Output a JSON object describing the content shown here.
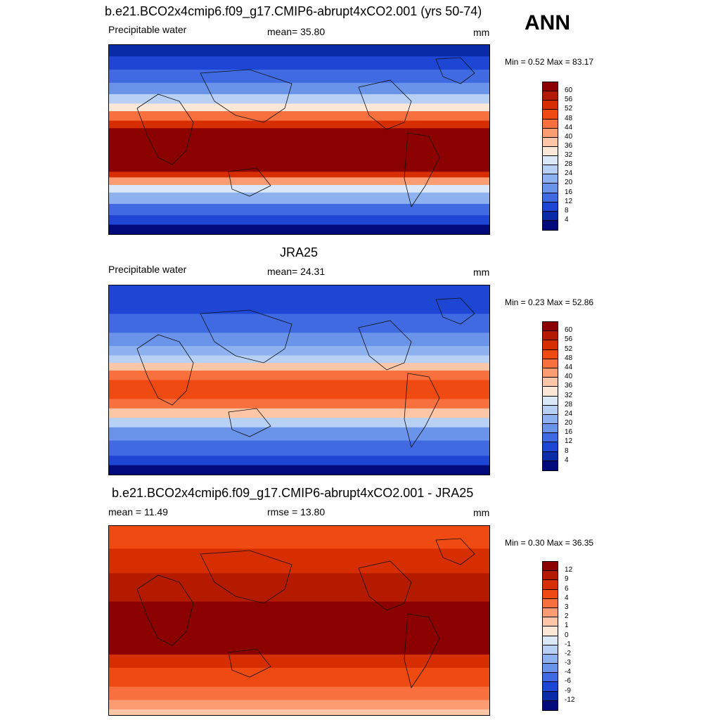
{
  "annotation": "ANN",
  "panels": [
    {
      "title": "b.e21.BCO2x4cmip6.f09_g17.CMIP6-abrupt4xCO2.001 (yrs 50-74)",
      "left_label": "Precipitable water",
      "center_label": "mean=  35.80",
      "right_label": "mm",
      "minmax": "Min =   0.52 Max =  83.17",
      "colorbar_labels": [
        "60",
        "56",
        "52",
        "48",
        "44",
        "40",
        "36",
        "32",
        "28",
        "24",
        "20",
        "16",
        "12",
        "8",
        "4"
      ],
      "colorbar_colors": [
        "#8b0000",
        "#b41a00",
        "#d62e00",
        "#ef4a12",
        "#f8703e",
        "#fb9c73",
        "#fdc6a6",
        "#fde8d8",
        "#dbe8f8",
        "#b8d0f4",
        "#8eb2ef",
        "#6a93ea",
        "#3f6ae2",
        "#1d46d5",
        "#0a2ba8",
        "#000a7a"
      ],
      "map_type": "model"
    },
    {
      "title": "JRA25",
      "left_label": "Precipitable water",
      "center_label": "mean=  24.31",
      "right_label": "mm",
      "minmax": "Min =   0.23 Max =  52.86",
      "colorbar_labels": [
        "60",
        "56",
        "52",
        "48",
        "44",
        "40",
        "36",
        "32",
        "28",
        "24",
        "20",
        "16",
        "12",
        "8",
        "4"
      ],
      "colorbar_colors": [
        "#8b0000",
        "#b41a00",
        "#d62e00",
        "#ef4a12",
        "#f8703e",
        "#fb9c73",
        "#fdc6a6",
        "#fde8d8",
        "#dbe8f8",
        "#b8d0f4",
        "#8eb2ef",
        "#6a93ea",
        "#3f6ae2",
        "#1d46d5",
        "#0a2ba8",
        "#000a7a"
      ],
      "map_type": "obs"
    },
    {
      "title": "b.e21.BCO2x4cmip6.f09_g17.CMIP6-abrupt4xCO2.001 - JRA25",
      "left_label": "mean =  11.49",
      "center_label": "rmse =  13.80",
      "right_label": "mm",
      "minmax": "Min =   0.30 Max =  36.35",
      "colorbar_labels": [
        "12",
        "9",
        "6",
        "4",
        "3",
        "2",
        "1",
        "0",
        "-1",
        "-2",
        "-3",
        "-4",
        "-6",
        "-9",
        "-12"
      ],
      "colorbar_colors": [
        "#8b0000",
        "#b41a00",
        "#d62e00",
        "#ef4a12",
        "#f8703e",
        "#fb9c73",
        "#fdc6a6",
        "#fde8d8",
        "#dbe8f8",
        "#b8d0f4",
        "#8eb2ef",
        "#6a93ea",
        "#3f6ae2",
        "#1d46d5",
        "#0a2ba8",
        "#000a7a"
      ],
      "map_type": "diff"
    }
  ]
}
